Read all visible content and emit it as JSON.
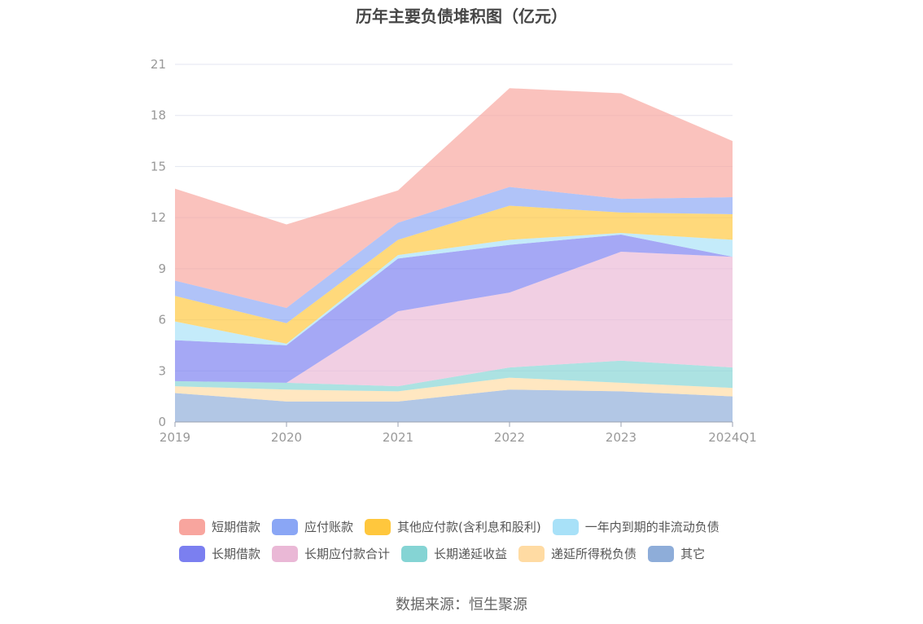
{
  "chart_data": {
    "type": "area",
    "stacked": true,
    "title": "历年主要负债堆积图（亿元）",
    "categories": [
      "2019",
      "2020",
      "2021",
      "2022",
      "2023",
      "2024Q1"
    ],
    "yticks": [
      "0",
      "3",
      "6",
      "9",
      "12",
      "15",
      "18",
      "21"
    ],
    "ylim": [
      0,
      21
    ],
    "grid": true,
    "legend_position": "bottom",
    "series": [
      {
        "name": "其它",
        "color": "#8eadd9",
        "values": [
          1.7,
          1.2,
          1.2,
          1.9,
          1.8,
          1.5
        ]
      },
      {
        "name": "递延所得税负债",
        "color": "#ffdba3",
        "values": [
          0.4,
          0.7,
          0.6,
          0.7,
          0.5,
          0.5
        ]
      },
      {
        "name": "长期递延收益",
        "color": "#85d4d4",
        "values": [
          0.3,
          0.4,
          0.3,
          0.6,
          1.3,
          1.2
        ]
      },
      {
        "name": "长期应付款合计",
        "color": "#eab8d6",
        "values": [
          0,
          0,
          4.4,
          4.4,
          6.4,
          6.5
        ]
      },
      {
        "name": "长期借款",
        "color": "#7b7ff0",
        "values": [
          2.4,
          2.2,
          3.1,
          2.8,
          1.0,
          0
        ]
      },
      {
        "name": "一年内到期的非流动负债",
        "color": "#a8e1f8",
        "values": [
          1.1,
          0.1,
          0.2,
          0.3,
          0.1,
          1.0
        ]
      },
      {
        "name": "其他应付款(含利息和股利)",
        "color": "#ffc73d",
        "values": [
          1.5,
          1.2,
          0.9,
          2.0,
          1.2,
          1.5
        ]
      },
      {
        "name": "应付账款",
        "color": "#8aa6f5",
        "values": [
          0.9,
          0.9,
          1.0,
          1.1,
          0.8,
          1.0
        ]
      },
      {
        "name": "短期借款",
        "color": "#f8a59e",
        "values": [
          5.4,
          4.9,
          1.9,
          5.8,
          6.2,
          3.3
        ]
      }
    ]
  },
  "legend": {
    "row1": [
      "短期借款",
      "应付账款",
      "其他应付款(含利息和股利)",
      "一年内到期的非流动负债"
    ],
    "row2": [
      "长期借款",
      "长期应付款合计",
      "长期递延收益",
      "递延所得税负债",
      "其它"
    ]
  },
  "source": "数据来源：恒生聚源"
}
